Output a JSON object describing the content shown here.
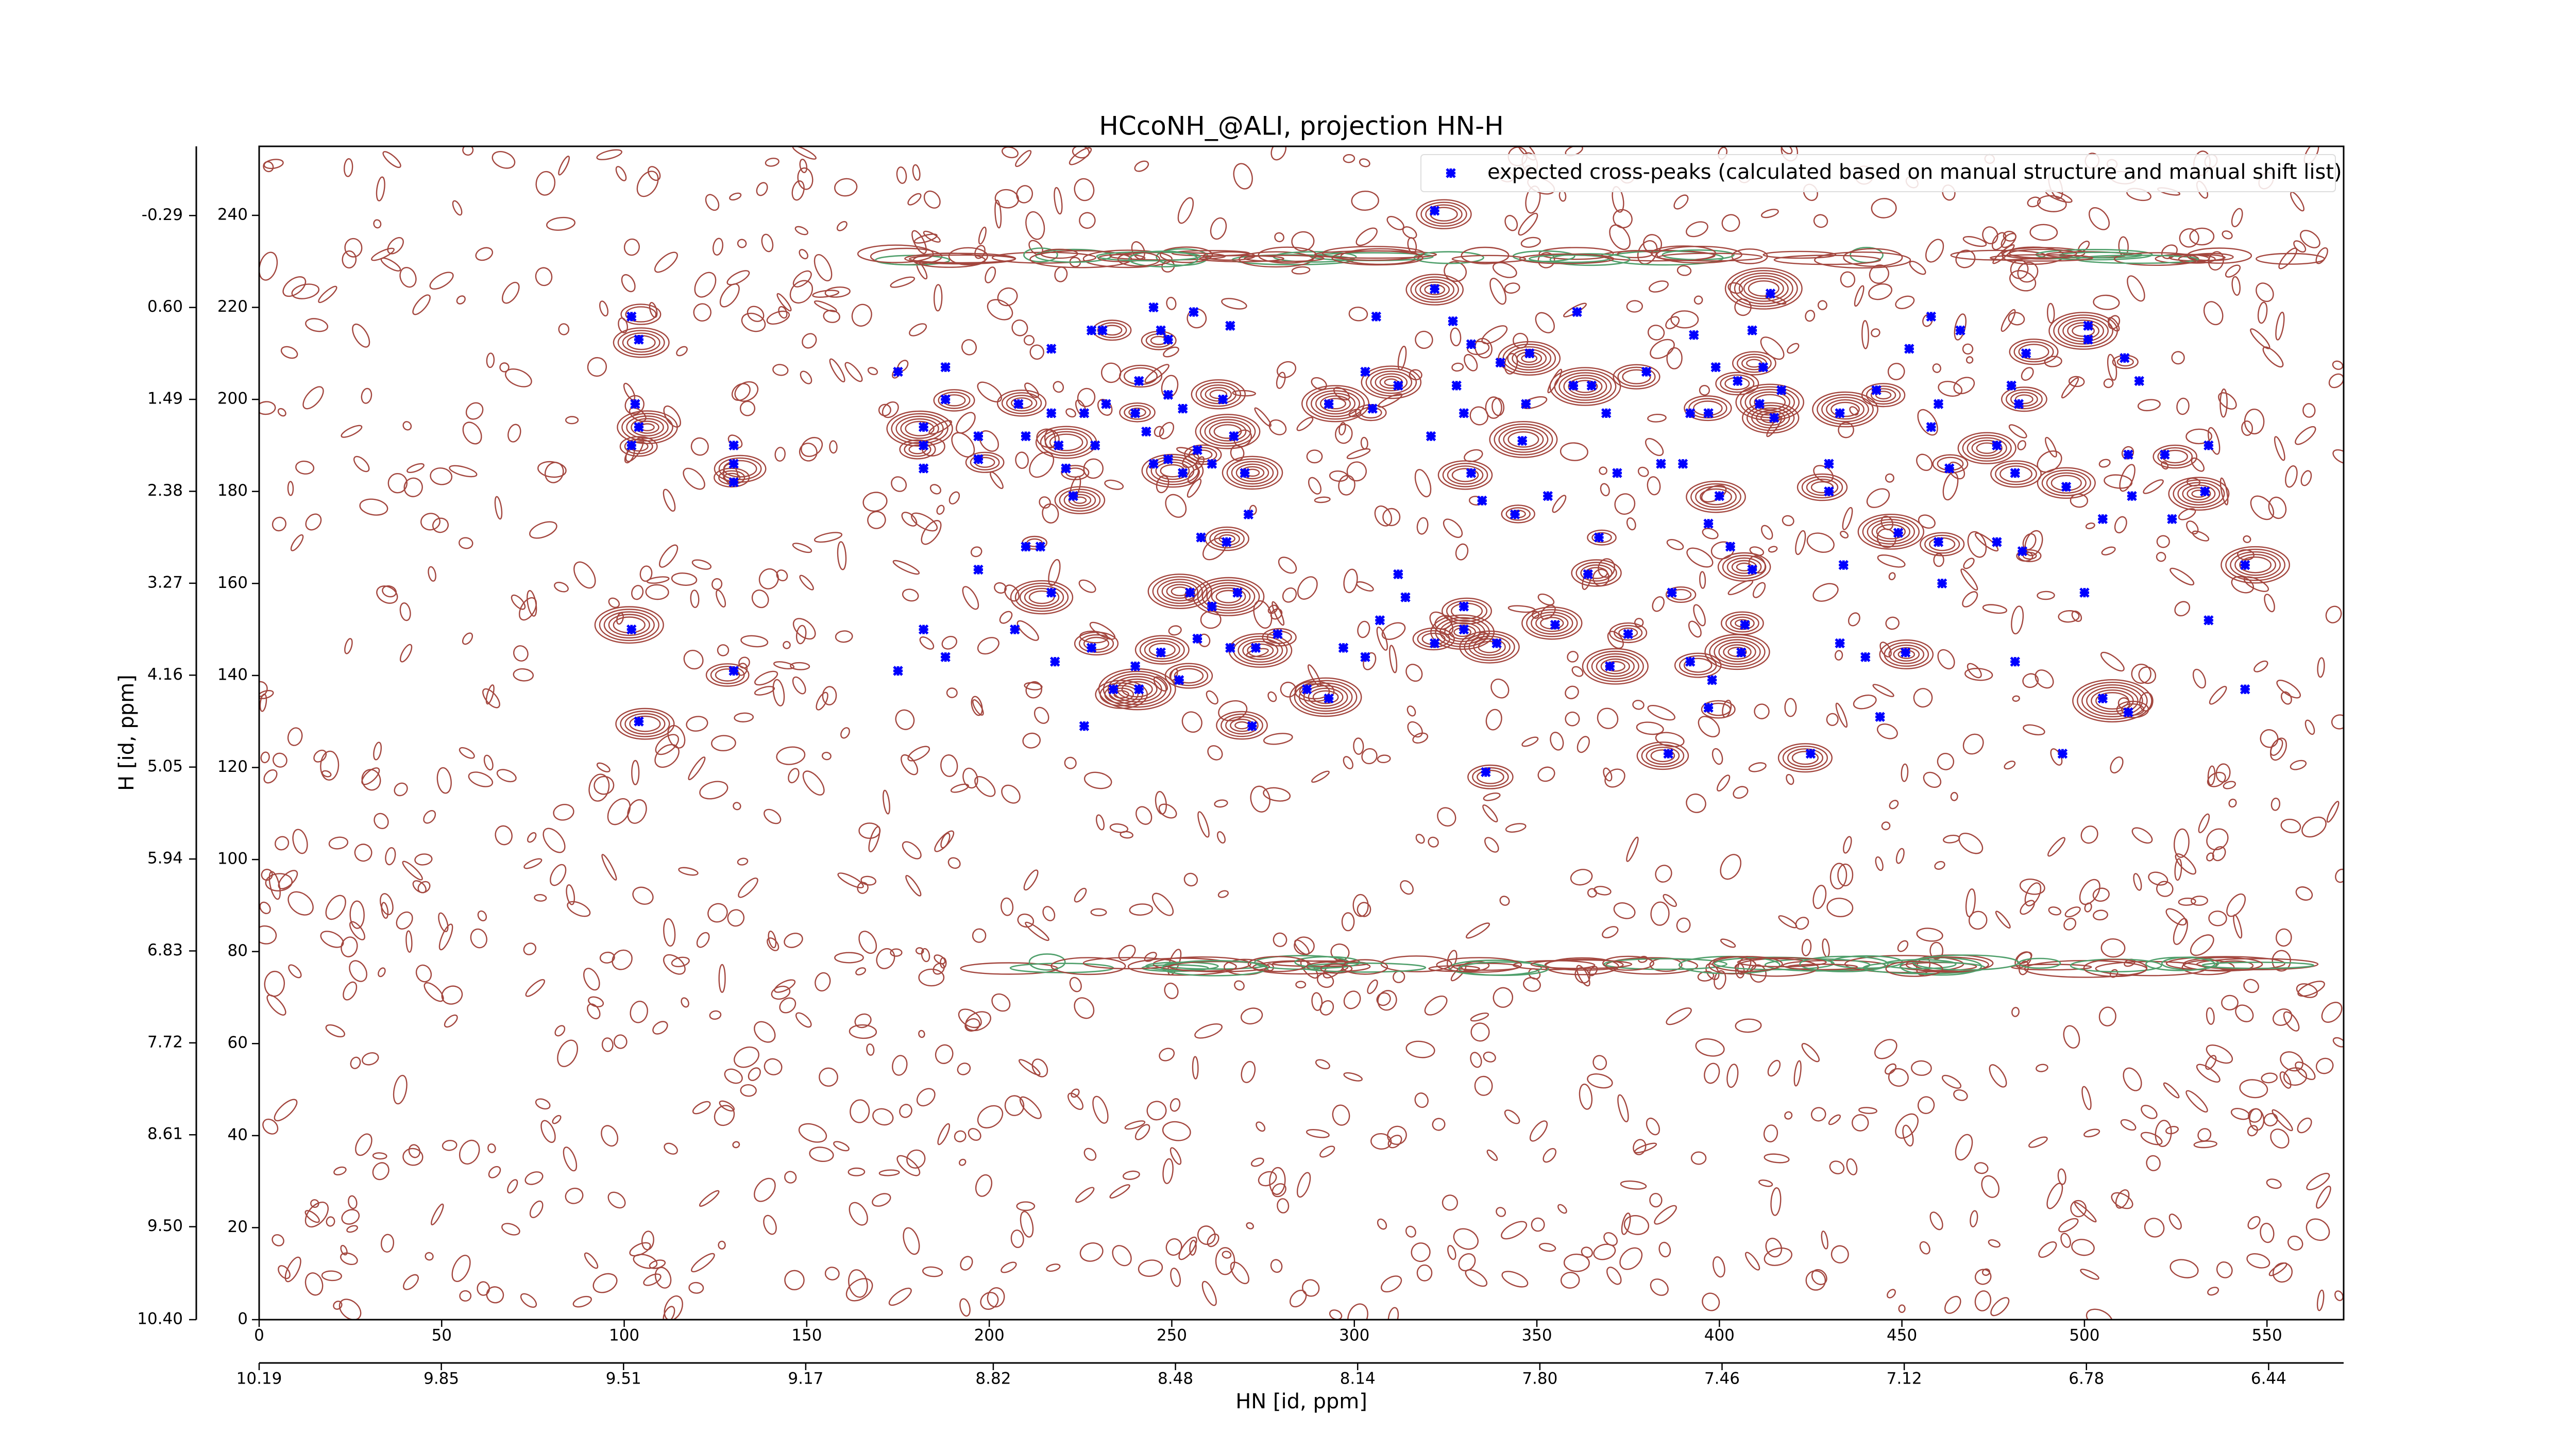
{
  "chart_data": {
    "type": "scatter",
    "title": "HCcoNH_@ALI, projection HN-H",
    "xlabel": "HN [id, ppm]",
    "ylabel": "H [id, ppm]",
    "xlim": [
      0,
      571
    ],
    "ylim": [
      0,
      255
    ],
    "xticks": [
      0,
      50,
      100,
      150,
      200,
      250,
      300,
      350,
      400,
      450,
      500,
      550
    ],
    "yticks": [
      0,
      20,
      40,
      60,
      80,
      100,
      120,
      140,
      160,
      180,
      200,
      220,
      240
    ],
    "x2lim": [
      10.19,
      6.3
    ],
    "x2ticks": [
      10.19,
      9.85,
      9.51,
      9.17,
      8.82,
      8.48,
      8.14,
      {
        "value": 7.8,
        "label": "7.80"
      },
      7.46,
      7.12,
      6.78,
      6.44
    ],
    "y2lim": [
      10.4,
      -0.96
    ],
    "y2ticks": [
      {
        "value": 10.4,
        "label": "10.40"
      },
      {
        "value": 9.5,
        "label": "9.50"
      },
      8.61,
      7.72,
      6.83,
      5.94,
      5.05,
      4.16,
      3.27,
      2.38,
      1.49,
      {
        "value": 0.6,
        "label": "0.60"
      },
      -0.29
    ],
    "legend": "upper right",
    "series": [
      {
        "name": "expected cross-peaks (calculated based on manual structure and manual shift list)",
        "color": "#0000ff",
        "x": [
          102,
          104,
          103,
          104,
          102,
          130,
          130,
          130,
          102,
          104,
          130,
          175,
          182,
          182,
          182,
          188,
          188,
          182,
          175,
          188,
          197,
          197,
          197,
          208,
          210,
          217,
          217,
          219,
          221,
          223,
          210,
          214,
          217,
          207,
          218,
          228,
          226,
          226,
          228,
          231,
          229,
          232,
          241,
          240,
          243,
          245,
          247,
          249,
          245,
          249,
          253,
          249,
          253,
          257,
          261,
          264,
          267,
          270,
          256,
          266,
          255,
          257,
          252,
          247,
          240,
          241,
          234,
          258,
          265,
          271,
          261,
          268,
          266,
          272,
          273,
          279,
          293,
          303,
          306,
          305,
          312,
          322,
          327,
          332,
          328,
          321,
          330,
          332,
          335,
          312,
          314,
          307,
          303,
          297,
          293,
          287,
          322,
          330,
          330,
          336,
          339,
          344,
          346,
          347,
          348,
          340,
          353,
          355,
          360,
          361,
          369,
          365,
          367,
          364,
          370,
          375,
          372,
          380,
          384,
          393,
          392,
          390,
          387,
          392,
          397,
          397,
          400,
          399,
          405,
          409,
          412,
          414,
          411,
          415,
          417,
          403,
          409,
          398,
          406,
          407,
          397,
          386,
          425,
          430,
          433,
          430,
          434,
          440,
          433,
          444,
          451,
          443,
          452,
          458,
          460,
          458,
          463,
          460,
          449,
          461,
          466,
          480,
          482,
          476,
          481,
          476,
          481,
          483,
          484,
          495,
          494,
          501,
          501,
          500,
          505,
          505,
          512,
          512,
          513,
          522,
          524,
          534,
          534,
          533,
          544,
          544,
          511,
          515,
          322
        ],
        "values": [
          218,
          213,
          199,
          194,
          190,
          190,
          186,
          182,
          150,
          130,
          141,
          206,
          194,
          190,
          185,
          200,
          207,
          150,
          141,
          144,
          163,
          192,
          187,
          199,
          192,
          211,
          197,
          190,
          185,
          179,
          168,
          168,
          158,
          150,
          143,
          146,
          129,
          197,
          215,
          215,
          190,
          199,
          204,
          197,
          193,
          220,
          215,
          213,
          186,
          187,
          184,
          201,
          198,
          189,
          186,
          200,
          192,
          184,
          219,
          216,
          158,
          148,
          139,
          145,
          142,
          137,
          137,
          170,
          169,
          175,
          155,
          158,
          146,
          129,
          146,
          149,
          199,
          206,
          218,
          198,
          203,
          224,
          217,
          212,
          203,
          192,
          197,
          184,
          178,
          162,
          157,
          152,
          144,
          146,
          135,
          137,
          147,
          155,
          150,
          119,
          147,
          175,
          191,
          199,
          210,
          208,
          179,
          151,
          203,
          219,
          197,
          203,
          170,
          162,
          142,
          149,
          184,
          206,
          186,
          214,
          197,
          186,
          158,
          143,
          173,
          197,
          179,
          207,
          204,
          215,
          207,
          223,
          199,
          196,
          202,
          168,
          163,
          139,
          145,
          151,
          133,
          123,
          123,
          186,
          197,
          180,
          164,
          144,
          147,
          131,
          145,
          202,
          211,
          218,
          199,
          194,
          185,
          169,
          171,
          160,
          215,
          203,
          199,
          190,
          184,
          169,
          143,
          167,
          210,
          181,
          123,
          216,
          213,
          158,
          174,
          135,
          132,
          188,
          179,
          188,
          174,
          190,
          152,
          180,
          164,
          137,
          209,
          204,
          241
        ]
      }
    ]
  }
}
